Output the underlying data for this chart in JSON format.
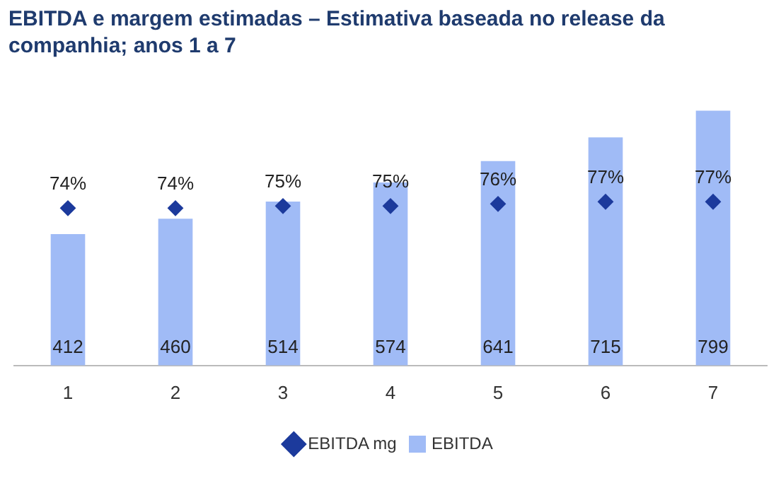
{
  "chart_data": {
    "type": "bar",
    "title": "EBITDA e margem estimadas – Estimativa baseada no release da companhia; anos 1 a 7",
    "categories": [
      "1",
      "2",
      "3",
      "4",
      "5",
      "6",
      "7"
    ],
    "series": [
      {
        "name": "EBITDA",
        "type": "bar",
        "color": "#a0bbf6",
        "values": [
          412,
          460,
          514,
          574,
          641,
          715,
          799
        ],
        "value_labels": [
          "412",
          "460",
          "514",
          "574",
          "641",
          "715",
          "799"
        ]
      },
      {
        "name": "EBITDA mg",
        "type": "scatter",
        "axis": "y2",
        "color": "#1c3a9c",
        "values": [
          74,
          74,
          75,
          75,
          76,
          77,
          77
        ],
        "value_labels": [
          "74%",
          "74%",
          "75%",
          "75%",
          "76%",
          "77%",
          "77%"
        ]
      }
    ],
    "marker": "diamond",
    "legend": "bottom",
    "grid": false,
    "tick_labels": "x"
  }
}
